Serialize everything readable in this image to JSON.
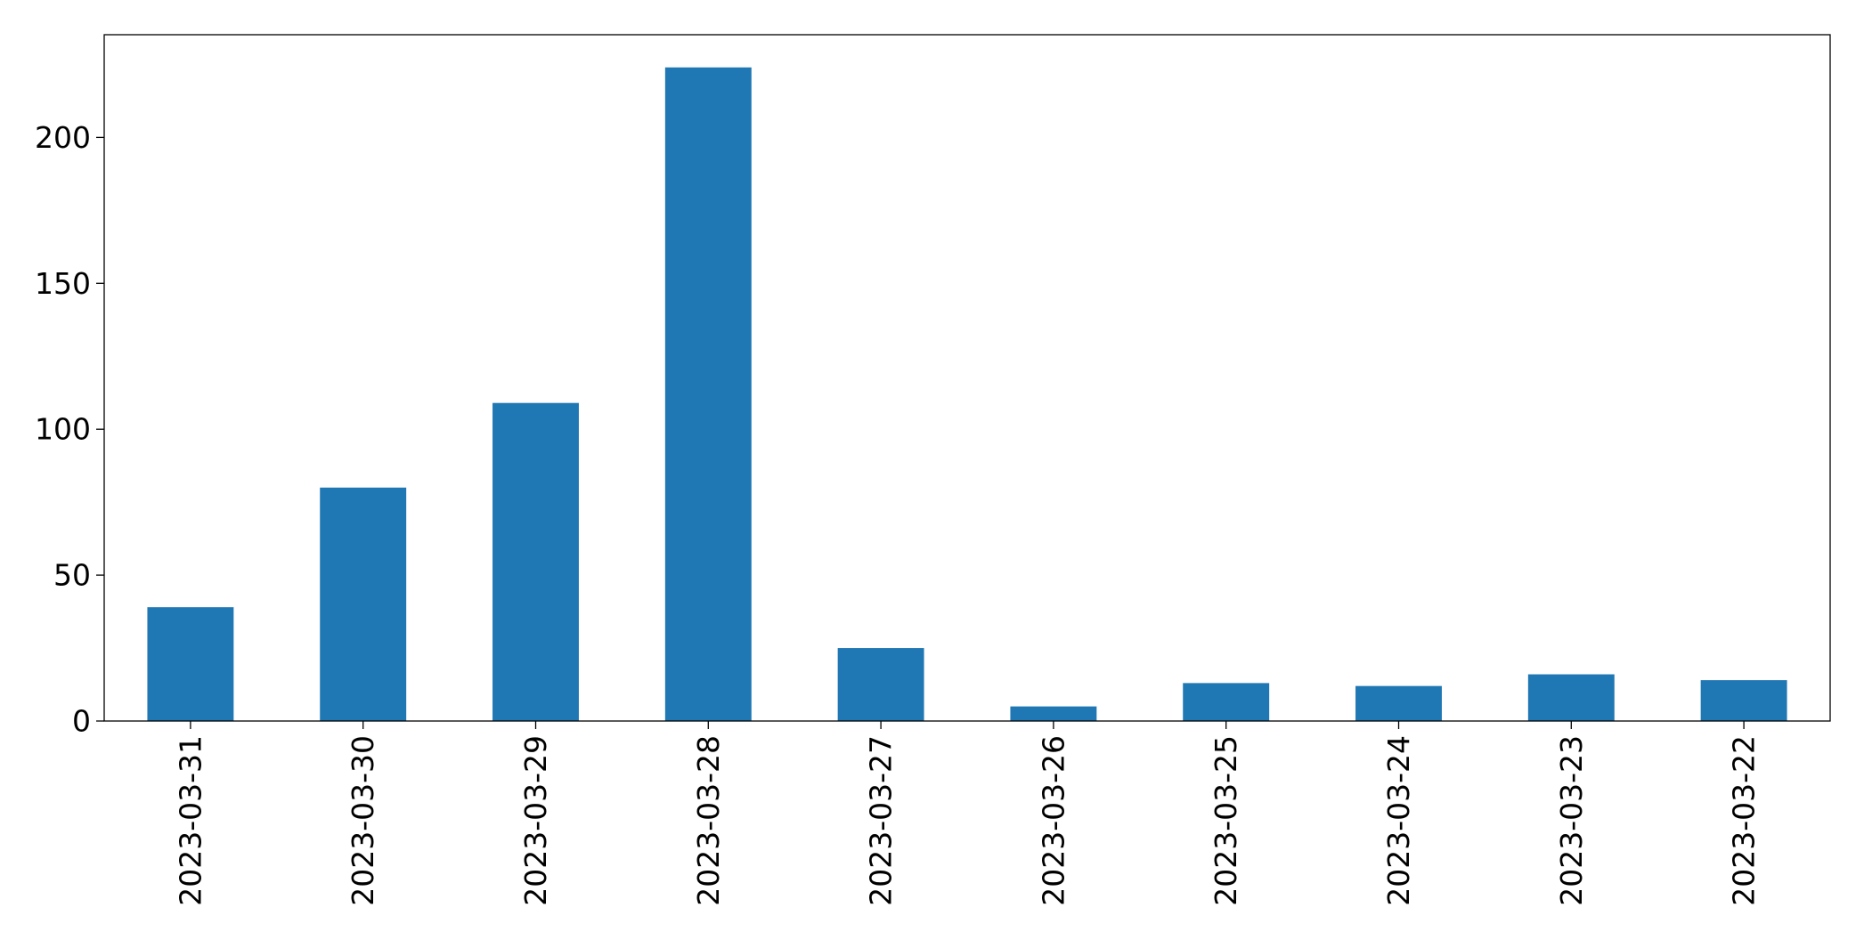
{
  "chart_data": {
    "type": "bar",
    "title": "",
    "xlabel": "",
    "ylabel": "",
    "categories": [
      "2023-03-31",
      "2023-03-30",
      "2023-03-29",
      "2023-03-28",
      "2023-03-27",
      "2023-03-26",
      "2023-03-25",
      "2023-03-24",
      "2023-03-23",
      "2023-03-22"
    ],
    "values": [
      39,
      80,
      109,
      224,
      25,
      5,
      13,
      12,
      16,
      14
    ],
    "ylim": [
      0,
      235.2
    ],
    "yticks": [
      0,
      50,
      100,
      150,
      200
    ],
    "ytick_labels": [
      "0",
      "50",
      "100",
      "150",
      "200"
    ],
    "grid": false,
    "legend": "none",
    "colors": {
      "bar": "#1f77b4",
      "axis": "#000000",
      "background": "#ffffff"
    }
  }
}
